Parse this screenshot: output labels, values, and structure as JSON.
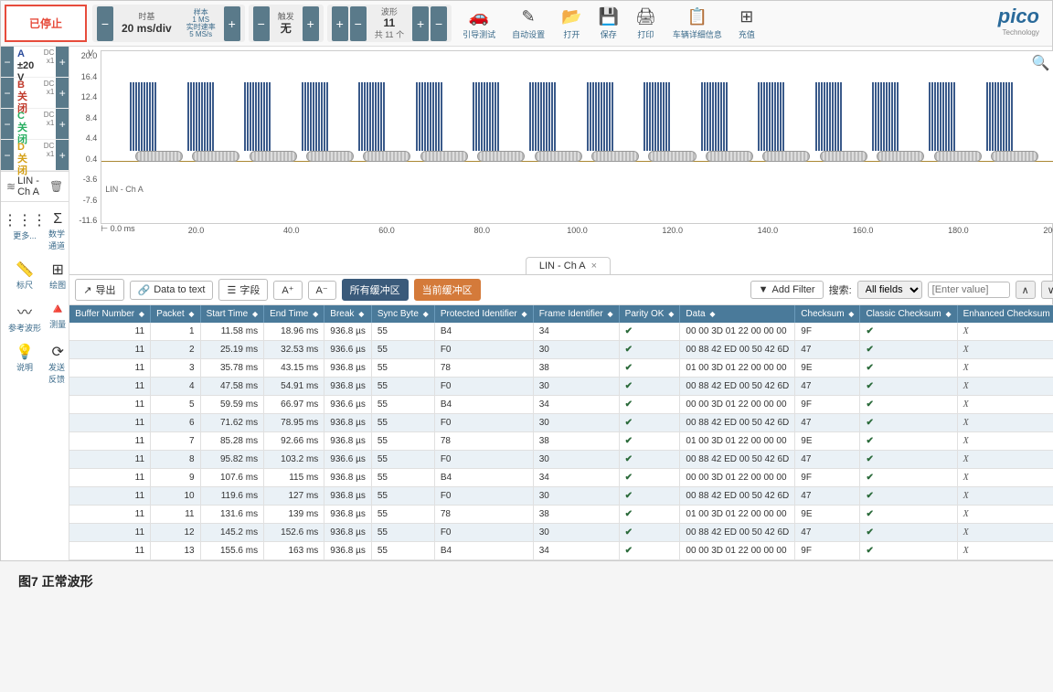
{
  "toolbar": {
    "stop_label": "已停止",
    "timebase": {
      "title": "时基",
      "value": "20 ms/div",
      "sample_lines": [
        "样本",
        "1 MS",
        "实时速率",
        "5 MS/s"
      ]
    },
    "trigger": {
      "title": "触发",
      "value": "无"
    },
    "waveform": {
      "title": "波形",
      "value": "11",
      "sub": "共 11 个"
    },
    "icons": [
      {
        "glyph": "🚗",
        "label": "引导测试"
      },
      {
        "glyph": "✎",
        "label": "自动设置"
      },
      {
        "glyph": "📂",
        "label": "打开"
      },
      {
        "glyph": "💾",
        "label": "保存"
      },
      {
        "glyph": "🖨",
        "label": "打印"
      },
      {
        "glyph": "📋",
        "label": "车辆详细信息"
      },
      {
        "glyph": "⊞",
        "label": "充值"
      }
    ],
    "logo": "pico",
    "logo_sub": "Technology"
  },
  "channels": [
    {
      "id": "A",
      "value": "±20 V",
      "coupling": "DC",
      "x": "x1",
      "cls": "ch-a"
    },
    {
      "id": "B",
      "value": "关闭",
      "coupling": "DC",
      "x": "x1",
      "cls": "ch-b closed"
    },
    {
      "id": "C",
      "value": "关闭",
      "coupling": "DC",
      "x": "x1",
      "cls": "ch-c closed"
    },
    {
      "id": "D",
      "value": "关闭",
      "coupling": "DC",
      "x": "x1",
      "cls": "ch-d closed"
    }
  ],
  "decoder": {
    "icon": "≋",
    "label": "LIN - Ch A"
  },
  "side_tools": [
    {
      "g": "⋮⋮⋮",
      "t": "更多..."
    },
    {
      "g": "Σ",
      "t": "数学通道"
    },
    {
      "g": "📏",
      "t": "标尺"
    },
    {
      "g": "⊞",
      "t": "绘图"
    },
    {
      "g": "〰",
      "t": "参考波形"
    },
    {
      "g": "🔺",
      "t": "测量"
    },
    {
      "g": "💡",
      "t": "说明"
    },
    {
      "g": "⟳",
      "t": "发送反馈"
    }
  ],
  "waveform": {
    "y_unit": "V",
    "y_ticks": [
      "20.0",
      "16.4",
      "12.4",
      "8.4",
      "4.4",
      "0.4",
      "-3.6",
      "-7.6",
      "-11.6"
    ],
    "x_ruler": "⊢ 0.0 ms",
    "x_ticks": [
      "20.0",
      "40.0",
      "60.0",
      "80.0",
      "100.0",
      "120.0",
      "140.0",
      "160.0",
      "180.0",
      "200.0"
    ],
    "signal_label": "LIN - Ch A",
    "signal_color": "#3a5a8a",
    "background": "#ffffff",
    "burst_positions_pct": [
      3,
      9,
      15,
      21,
      27,
      33,
      39,
      45,
      51,
      57,
      63,
      69,
      75,
      81,
      87,
      93
    ],
    "burst_width_pct": 4
  },
  "tab": {
    "label": "LIN - Ch A"
  },
  "table_toolbar": {
    "export": "导出",
    "data_to_text": "Data to text",
    "fields": "字段",
    "font_inc": "A⁺",
    "font_dec": "A⁻",
    "all_buffers": "所有缓冲区",
    "current_buffer": "当前缓冲区",
    "add_filter": "Add Filter",
    "search_label": "搜索:",
    "search_field": "All fields",
    "search_placeholder": "[Enter value]"
  },
  "table": {
    "header_bg": "#4a7a9a",
    "columns": [
      "Buffer Number",
      "Packet",
      "Start Time",
      "End Time",
      "Break",
      "Sync Byte",
      "Protected Identifier",
      "Frame Identifier",
      "Parity OK",
      "Data",
      "Checksum",
      "Classic Checksum",
      "Enhanced Checksum"
    ],
    "rows": [
      [
        "11",
        "1",
        "11.58 ms",
        "18.96 ms",
        "936.8 µs",
        "55",
        "B4",
        "34",
        "✔",
        "00 00 3D 01 22 00 00 00",
        "9F",
        "✔",
        "✗"
      ],
      [
        "11",
        "2",
        "25.19 ms",
        "32.53 ms",
        "936.6 µs",
        "55",
        "F0",
        "30",
        "✔",
        "00 88 42 ED 00 50 42 6D",
        "47",
        "✔",
        "✗"
      ],
      [
        "11",
        "3",
        "35.78 ms",
        "43.15 ms",
        "936.8 µs",
        "55",
        "78",
        "38",
        "✔",
        "01 00 3D 01 22 00 00 00",
        "9E",
        "✔",
        "✗"
      ],
      [
        "11",
        "4",
        "47.58 ms",
        "54.91 ms",
        "936.8 µs",
        "55",
        "F0",
        "30",
        "✔",
        "00 88 42 ED 00 50 42 6D",
        "47",
        "✔",
        "✗"
      ],
      [
        "11",
        "5",
        "59.59 ms",
        "66.97 ms",
        "936.6 µs",
        "55",
        "B4",
        "34",
        "✔",
        "00 00 3D 01 22 00 00 00",
        "9F",
        "✔",
        "✗"
      ],
      [
        "11",
        "6",
        "71.62 ms",
        "78.95 ms",
        "936.8 µs",
        "55",
        "F0",
        "30",
        "✔",
        "00 88 42 ED 00 50 42 6D",
        "47",
        "✔",
        "✗"
      ],
      [
        "11",
        "7",
        "85.28 ms",
        "92.66 ms",
        "936.8 µs",
        "55",
        "78",
        "38",
        "✔",
        "01 00 3D 01 22 00 00 00",
        "9E",
        "✔",
        "✗"
      ],
      [
        "11",
        "8",
        "95.82 ms",
        "103.2 ms",
        "936.6 µs",
        "55",
        "F0",
        "30",
        "✔",
        "00 88 42 ED 00 50 42 6D",
        "47",
        "✔",
        "✗"
      ],
      [
        "11",
        "9",
        "107.6 ms",
        "115 ms",
        "936.8 µs",
        "55",
        "B4",
        "34",
        "✔",
        "00 00 3D 01 22 00 00 00",
        "9F",
        "✔",
        "✗"
      ],
      [
        "11",
        "10",
        "119.6 ms",
        "127 ms",
        "936.8 µs",
        "55",
        "F0",
        "30",
        "✔",
        "00 88 42 ED 00 50 42 6D",
        "47",
        "✔",
        "✗"
      ],
      [
        "11",
        "11",
        "131.6 ms",
        "139 ms",
        "936.8 µs",
        "55",
        "78",
        "38",
        "✔",
        "01 00 3D 01 22 00 00 00",
        "9E",
        "✔",
        "✗"
      ],
      [
        "11",
        "12",
        "145.2 ms",
        "152.6 ms",
        "936.8 µs",
        "55",
        "F0",
        "30",
        "✔",
        "00 88 42 ED 00 50 42 6D",
        "47",
        "✔",
        "✗"
      ],
      [
        "11",
        "13",
        "155.6 ms",
        "163 ms",
        "936.8 µs",
        "55",
        "B4",
        "34",
        "✔",
        "00 00 3D 01 22 00 00 00",
        "9F",
        "✔",
        "✗"
      ]
    ]
  },
  "caption": "图7  正常波形"
}
